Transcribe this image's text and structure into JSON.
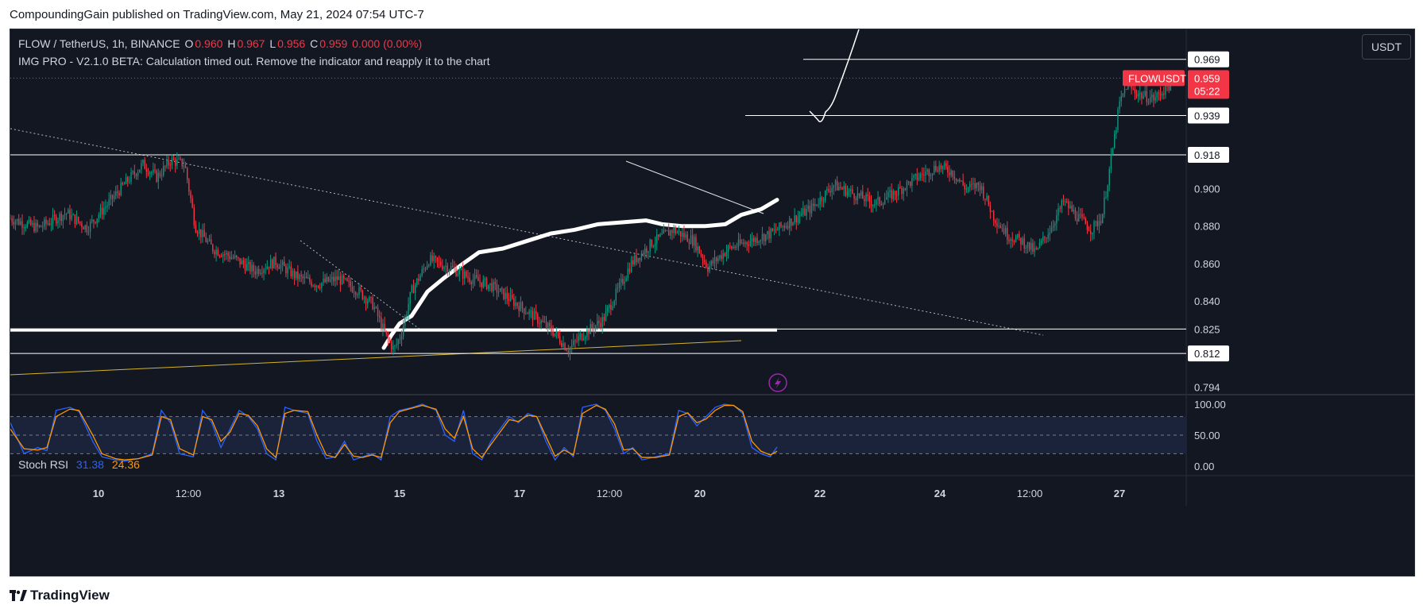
{
  "caption": "CompoundingGain published on TradingView.com, May 21, 2024 07:54 UTC-7",
  "legend": {
    "symbol": "FLOW / TetherUS, 1h, BINANCE",
    "o_label": "O",
    "o_value": "0.960",
    "h_label": "H",
    "h_value": "0.967",
    "l_label": "L",
    "l_value": "0.956",
    "c_label": "C",
    "c_value": "0.959",
    "change": "0.000 (0.00%)",
    "indicator_message": "IMG PRO - V2.1.0 BETA: Calculation timed out. Remove the indicator and reapply it to the chart"
  },
  "currency_button": "USDT",
  "stoch": {
    "name": "Stoch RSI",
    "k_value": "31.38",
    "d_value": "24.36"
  },
  "brand": "TradingView",
  "colors": {
    "background": "#131722",
    "up": "#089981",
    "down": "#f23645",
    "stoch_k": "#2962ff",
    "stoch_d": "#ff9800",
    "band": "#1e2a45"
  },
  "chart_data": {
    "type": "candlestick",
    "symbol": "FLOWUSDT",
    "price_axis": {
      "ticks": [
        "0.900",
        "0.880",
        "0.860",
        "0.840",
        "0.825",
        "0.794"
      ],
      "labeled_levels": [
        "0.969",
        "0.939",
        "0.918",
        "0.812"
      ],
      "range": [
        0.79,
        0.985
      ]
    },
    "last_price": {
      "label": "FLOWUSDT",
      "value": "0.959",
      "countdown": "05:22"
    },
    "x_ticks": [
      "10",
      "12:00",
      "13",
      "15",
      "17",
      "12:00",
      "20",
      "22",
      "24",
      "12:00",
      "27"
    ],
    "x_domain": [
      "May 8 18:00",
      "May 28 12:00"
    ],
    "horizontal_levels": [
      0.969,
      0.939,
      0.918,
      0.825,
      0.812
    ],
    "price_path": [
      [
        0,
        0.884
      ],
      [
        8,
        0.879
      ],
      [
        16,
        0.887
      ],
      [
        22,
        0.879
      ],
      [
        28,
        0.892
      ],
      [
        33,
        0.903
      ],
      [
        38,
        0.913
      ],
      [
        42,
        0.906
      ],
      [
        46,
        0.915
      ],
      [
        50,
        0.913
      ],
      [
        53,
        0.88
      ],
      [
        58,
        0.868
      ],
      [
        64,
        0.863
      ],
      [
        70,
        0.856
      ],
      [
        76,
        0.861
      ],
      [
        82,
        0.853
      ],
      [
        88,
        0.849
      ],
      [
        94,
        0.852
      ],
      [
        100,
        0.845
      ],
      [
        104,
        0.838
      ],
      [
        108,
        0.82
      ],
      [
        110,
        0.814
      ],
      [
        112,
        0.822
      ],
      [
        115,
        0.845
      ],
      [
        120,
        0.862
      ],
      [
        126,
        0.858
      ],
      [
        132,
        0.852
      ],
      [
        138,
        0.848
      ],
      [
        144,
        0.84
      ],
      [
        150,
        0.832
      ],
      [
        156,
        0.823
      ],
      [
        160,
        0.814
      ],
      [
        164,
        0.822
      ],
      [
        170,
        0.83
      ],
      [
        174,
        0.845
      ],
      [
        178,
        0.86
      ],
      [
        184,
        0.871
      ],
      [
        190,
        0.878
      ],
      [
        196,
        0.872
      ],
      [
        200,
        0.858
      ],
      [
        206,
        0.868
      ],
      [
        212,
        0.872
      ],
      [
        218,
        0.876
      ],
      [
        224,
        0.883
      ],
      [
        230,
        0.89
      ],
      [
        236,
        0.902
      ],
      [
        242,
        0.897
      ],
      [
        248,
        0.892
      ],
      [
        254,
        0.898
      ],
      [
        260,
        0.906
      ],
      [
        266,
        0.912
      ],
      [
        270,
        0.909
      ],
      [
        274,
        0.9
      ],
      [
        278,
        0.902
      ],
      [
        282,
        0.885
      ],
      [
        286,
        0.875
      ],
      [
        290,
        0.872
      ],
      [
        294,
        0.866
      ],
      [
        298,
        0.878
      ],
      [
        302,
        0.893
      ],
      [
        306,
        0.885
      ],
      [
        310,
        0.878
      ],
      [
        313,
        0.885
      ],
      [
        316,
        0.92
      ],
      [
        318,
        0.945
      ],
      [
        320,
        0.955
      ],
      [
        324,
        0.95
      ],
      [
        328,
        0.948
      ],
      [
        332,
        0.955
      ],
      [
        335,
        0.959
      ]
    ],
    "stoch_rsi": {
      "levels": {
        "upper": 80,
        "middle": 50,
        "lower": 20
      },
      "ticks": [
        "100.00",
        "50.00",
        "0.00"
      ],
      "k_path": [
        [
          0,
          70
        ],
        [
          6,
          20
        ],
        [
          12,
          30
        ],
        [
          16,
          25
        ],
        [
          20,
          90
        ],
        [
          26,
          95
        ],
        [
          30,
          88
        ],
        [
          36,
          40
        ],
        [
          40,
          15
        ],
        [
          46,
          10
        ],
        [
          50,
          8
        ],
        [
          56,
          12
        ],
        [
          62,
          20
        ],
        [
          66,
          90
        ],
        [
          70,
          70
        ],
        [
          74,
          20
        ],
        [
          80,
          15
        ],
        [
          84,
          90
        ],
        [
          88,
          70
        ],
        [
          92,
          30
        ],
        [
          96,
          60
        ],
        [
          100,
          90
        ],
        [
          104,
          80
        ],
        [
          108,
          60
        ],
        [
          112,
          20
        ],
        [
          116,
          10
        ],
        [
          120,
          95
        ],
        [
          124,
          90
        ],
        [
          130,
          85
        ],
        [
          134,
          40
        ],
        [
          138,
          12
        ],
        [
          142,
          15
        ],
        [
          146,
          40
        ],
        [
          150,
          10
        ],
        [
          154,
          15
        ],
        [
          158,
          20
        ],
        [
          162,
          10
        ],
        [
          166,
          80
        ],
        [
          170,
          90
        ],
        [
          176,
          95
        ],
        [
          180,
          100
        ],
        [
          186,
          90
        ],
        [
          190,
          50
        ],
        [
          194,
          40
        ],
        [
          198,
          90
        ],
        [
          202,
          20
        ],
        [
          206,
          10
        ],
        [
          210,
          40
        ],
        [
          214,
          60
        ],
        [
          218,
          80
        ],
        [
          222,
          70
        ],
        [
          226,
          85
        ],
        [
          230,
          80
        ],
        [
          234,
          40
        ],
        [
          238,
          10
        ],
        [
          242,
          30
        ],
        [
          246,
          15
        ],
        [
          250,
          95
        ],
        [
          256,
          100
        ],
        [
          260,
          90
        ],
        [
          264,
          60
        ],
        [
          268,
          20
        ],
        [
          272,
          30
        ],
        [
          276,
          10
        ],
        [
          282,
          15
        ],
        [
          288,
          20
        ],
        [
          292,
          90
        ],
        [
          296,
          85
        ],
        [
          300,
          65
        ],
        [
          304,
          80
        ],
        [
          308,
          95
        ],
        [
          312,
          100
        ],
        [
          316,
          98
        ],
        [
          320,
          85
        ],
        [
          324,
          30
        ],
        [
          328,
          20
        ],
        [
          332,
          15
        ],
        [
          335,
          31
        ]
      ],
      "d_path": [
        [
          0,
          60
        ],
        [
          6,
          28
        ],
        [
          12,
          26
        ],
        [
          16,
          30
        ],
        [
          20,
          80
        ],
        [
          26,
          92
        ],
        [
          30,
          90
        ],
        [
          36,
          50
        ],
        [
          40,
          20
        ],
        [
          46,
          12
        ],
        [
          50,
          10
        ],
        [
          56,
          12
        ],
        [
          62,
          18
        ],
        [
          66,
          80
        ],
        [
          70,
          75
        ],
        [
          74,
          28
        ],
        [
          80,
          18
        ],
        [
          84,
          80
        ],
        [
          88,
          75
        ],
        [
          92,
          40
        ],
        [
          96,
          55
        ],
        [
          100,
          85
        ],
        [
          104,
          82
        ],
        [
          108,
          65
        ],
        [
          112,
          28
        ],
        [
          116,
          14
        ],
        [
          120,
          85
        ],
        [
          124,
          90
        ],
        [
          130,
          88
        ],
        [
          134,
          50
        ],
        [
          138,
          18
        ],
        [
          142,
          14
        ],
        [
          146,
          35
        ],
        [
          150,
          16
        ],
        [
          154,
          14
        ],
        [
          158,
          18
        ],
        [
          162,
          14
        ],
        [
          166,
          70
        ],
        [
          170,
          88
        ],
        [
          176,
          94
        ],
        [
          180,
          98
        ],
        [
          186,
          92
        ],
        [
          190,
          60
        ],
        [
          194,
          45
        ],
        [
          198,
          80
        ],
        [
          202,
          28
        ],
        [
          206,
          14
        ],
        [
          210,
          35
        ],
        [
          214,
          55
        ],
        [
          218,
          75
        ],
        [
          222,
          72
        ],
        [
          226,
          82
        ],
        [
          230,
          80
        ],
        [
          234,
          48
        ],
        [
          238,
          16
        ],
        [
          242,
          26
        ],
        [
          246,
          18
        ],
        [
          250,
          85
        ],
        [
          256,
          98
        ],
        [
          260,
          92
        ],
        [
          264,
          68
        ],
        [
          268,
          26
        ],
        [
          272,
          28
        ],
        [
          276,
          14
        ],
        [
          282,
          14
        ],
        [
          288,
          18
        ],
        [
          292,
          80
        ],
        [
          296,
          86
        ],
        [
          300,
          70
        ],
        [
          304,
          76
        ],
        [
          308,
          90
        ],
        [
          312,
          98
        ],
        [
          316,
          98
        ],
        [
          320,
          88
        ],
        [
          324,
          40
        ],
        [
          328,
          24
        ],
        [
          332,
          18
        ],
        [
          335,
          24
        ]
      ]
    }
  }
}
